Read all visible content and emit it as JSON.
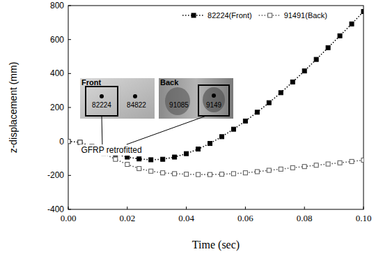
{
  "chart_data": {
    "type": "line",
    "x_label": "Time (sec)",
    "y_label": "z-displacement (mm)",
    "x": [
      0,
      0.004,
      0.008,
      0.012,
      0.016,
      0.02,
      0.024,
      0.028,
      0.032,
      0.036,
      0.04,
      0.044,
      0.048,
      0.052,
      0.056,
      0.06,
      0.064,
      0.068,
      0.072,
      0.076,
      0.08,
      0.084,
      0.088,
      0.092,
      0.096,
      0.1
    ],
    "series": [
      {
        "name": "82224(Front)",
        "color": "#000000",
        "marker": "filled-square",
        "line_style": "dotted",
        "values": [
          0,
          -5,
          -30,
          -55,
          -75,
          -92,
          -103,
          -108,
          -105,
          -92,
          -72,
          -45,
          -12,
          28,
          72,
          120,
          172,
          228,
          287,
          350,
          415,
          483,
          552,
          622,
          692,
          765
        ]
      },
      {
        "name": "91491(Back)",
        "color": "#555555",
        "marker": "open-square",
        "line_style": "dotted",
        "values": [
          0,
          -5,
          -35,
          -70,
          -105,
          -135,
          -160,
          -175,
          -185,
          -190,
          -193,
          -195,
          -195,
          -193,
          -190,
          -185,
          -178,
          -170,
          -163,
          -155,
          -148,
          -140,
          -133,
          -126,
          -118,
          -110
        ]
      }
    ],
    "xlim": [
      0,
      0.1
    ],
    "ylim": [
      -400,
      800
    ],
    "xticks": [
      {
        "value": 0,
        "label": "0.00"
      },
      {
        "value": 0.02,
        "label": "0.02"
      },
      {
        "value": 0.04,
        "label": "0.04"
      },
      {
        "value": 0.06,
        "label": "0.06"
      },
      {
        "value": 0.08,
        "label": "0.08"
      },
      {
        "value": 0.1,
        "label": "0.10"
      }
    ],
    "yticks": [
      -400,
      -200,
      0,
      200,
      400,
      600,
      800
    ],
    "grid": false,
    "legend": "top-right",
    "annotations": [
      "Front",
      "Back",
      "82224",
      "84822",
      "91085",
      "9149",
      "GFRP retrofitted"
    ]
  }
}
